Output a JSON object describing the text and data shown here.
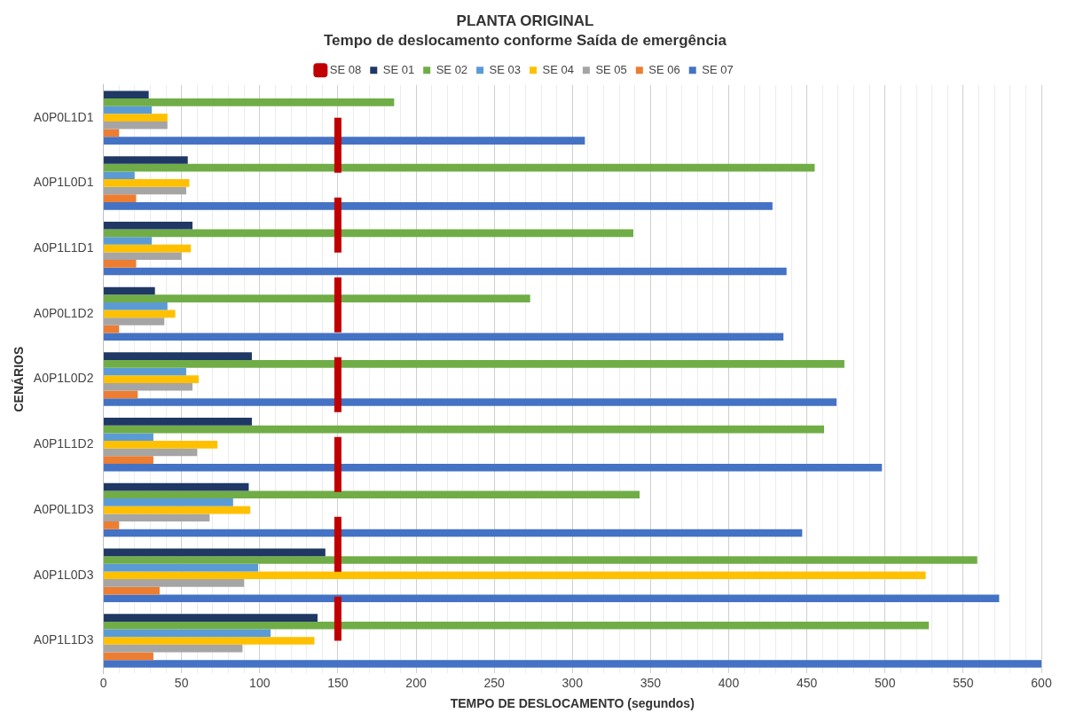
{
  "chart_data": {
    "type": "bar",
    "orientation": "horizontal",
    "title": "PLANTA ORIGINAL",
    "subtitle": "Tempo de deslocamento conforme Saída de emergência",
    "xlabel": "TEMPO DE DESLOCAMENTO (segundos)",
    "ylabel": "CENÁRIOS",
    "categories": [
      "A0P0L1D1",
      "A0P1L0D1",
      "A0P1L1D1",
      "A0P0L1D2",
      "A0P1L0D2",
      "A0P1L1D2",
      "A0P0L1D3",
      "A0P1L0D3",
      "A0P1L1D3"
    ],
    "series": [
      {
        "name": "SE 01",
        "color": "#1f3864",
        "values": [
          29,
          54,
          57,
          33,
          95,
          95,
          93,
          142,
          137
        ]
      },
      {
        "name": "SE 02",
        "color": "#70ad47",
        "values": [
          186,
          455,
          339,
          273,
          474,
          461,
          343,
          559,
          528
        ]
      },
      {
        "name": "SE 03",
        "color": "#5b9bd5",
        "values": [
          31,
          20,
          31,
          41,
          53,
          32,
          83,
          99,
          107
        ]
      },
      {
        "name": "SE 04",
        "color": "#ffc000",
        "values": [
          41,
          55,
          56,
          46,
          61,
          73,
          94,
          526,
          135
        ]
      },
      {
        "name": "SE 05",
        "color": "#a5a5a5",
        "values": [
          41,
          53,
          50,
          39,
          57,
          60,
          68,
          90,
          89
        ]
      },
      {
        "name": "SE 06",
        "color": "#ed7d31",
        "values": [
          10,
          21,
          21,
          10,
          22,
          32,
          10,
          36,
          32
        ]
      },
      {
        "name": "SE 07",
        "color": "#4472c4",
        "values": [
          308,
          428,
          437,
          435,
          469,
          498,
          447,
          573,
          600
        ]
      },
      {
        "name": "SE 08",
        "color": "#c00000",
        "type": "line",
        "line_style": "dashed",
        "marker": "none",
        "values": [
          150,
          150,
          150,
          150,
          150,
          150,
          150,
          150,
          150
        ]
      }
    ],
    "xlim": [
      0,
      600
    ],
    "xticks": [
      0,
      {
        "value": 10,
        "label": null
      },
      {
        "value": 20,
        "label": null
      },
      {
        "value": 30,
        "label": null
      },
      {
        "value": 40,
        "label": null
      },
      50,
      {
        "value": 60,
        "label": null
      },
      {
        "value": 70,
        "label": null
      },
      {
        "value": 80,
        "label": null
      },
      {
        "value": 90,
        "label": null
      },
      100,
      {
        "value": 110,
        "label": null
      },
      {
        "value": 120,
        "label": null
      },
      {
        "value": 130,
        "label": null
      },
      {
        "value": 140,
        "label": null
      },
      150,
      {
        "value": 160,
        "label": null
      },
      {
        "value": 170,
        "label": null
      },
      {
        "value": 180,
        "label": null
      },
      {
        "value": 190,
        "label": null
      },
      200,
      {
        "value": 210,
        "label": null
      },
      {
        "value": 220,
        "label": null
      },
      {
        "value": 230,
        "label": null
      },
      {
        "value": 240,
        "label": null
      },
      250,
      {
        "value": 260,
        "label": null
      },
      {
        "value": 270,
        "label": null
      },
      {
        "value": 280,
        "label": null
      },
      {
        "value": 290,
        "label": null
      },
      300,
      {
        "value": 310,
        "label": null
      },
      {
        "value": 320,
        "label": null
      },
      {
        "value": 330,
        "label": null
      },
      {
        "value": 340,
        "label": null
      },
      350,
      {
        "value": 360,
        "label": null
      },
      {
        "value": 370,
        "label": null
      },
      {
        "value": 380,
        "label": null
      },
      {
        "value": 390,
        "label": null
      },
      400,
      {
        "value": 410,
        "label": null
      },
      {
        "value": 420,
        "label": null
      },
      {
        "value": 430,
        "label": null
      },
      {
        "value": 440,
        "label": null
      },
      450,
      {
        "value": 460,
        "label": null
      },
      {
        "value": 470,
        "label": null
      },
      {
        "value": 480,
        "label": null
      },
      {
        "value": 490,
        "label": null
      },
      500,
      {
        "value": 510,
        "label": null
      },
      {
        "value": 520,
        "label": null
      },
      {
        "value": 530,
        "label": null
      },
      {
        "value": 540,
        "label": null
      },
      550,
      {
        "value": 560,
        "label": null
      },
      {
        "value": 570,
        "label": null
      },
      {
        "value": 580,
        "label": null
      },
      {
        "value": 590,
        "label": null
      },
      600
    ],
    "grid": "x",
    "legend": "top"
  }
}
